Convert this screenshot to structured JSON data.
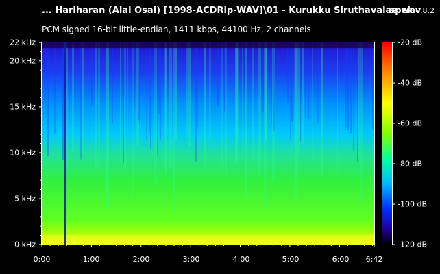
{
  "header": {
    "title": "... Hariharan (Alai Osai) [1998-ACDRip-WAV]\\01 - Kurukku Siruthavalae.wav",
    "app_name": "spek",
    "app_version": "0.8.2",
    "info": "PCM signed 16-bit little-endian, 1411 kbps, 44100 Hz, 2 channels"
  },
  "freq_axis": [
    "22 kHz",
    "20 kHz",
    "15 kHz",
    "10 kHz",
    "5 kHz",
    "0 kHz"
  ],
  "time_axis": [
    "0:00",
    "1:00",
    "2:00",
    "3:00",
    "4:00",
    "5:00",
    "6:00",
    "6:42"
  ],
  "db_scale": [
    "-20 dB",
    "-40 dB",
    "-60 dB",
    "-80 dB",
    "-100 dB",
    "-120 dB"
  ],
  "colors": {
    "background": "#000000",
    "text": "#ffffff",
    "palette": [
      "#ff0000",
      "#ff8000",
      "#ffff00",
      "#80ff00",
      "#00ff80",
      "#00c8ff",
      "#0040ff",
      "#2000a0",
      "#000000"
    ]
  },
  "chart_data": {
    "type": "heatmap",
    "title": "... Hariharan (Alai Osai) [1998-ACDRip-WAV]\\01 - Kurukku Siruthavalae.wav",
    "xlabel": "",
    "ylabel": "",
    "x_range_seconds": [
      0,
      402
    ],
    "y_range_khz": [
      0,
      22
    ],
    "color_range_db": [
      -120,
      -20
    ]
  }
}
